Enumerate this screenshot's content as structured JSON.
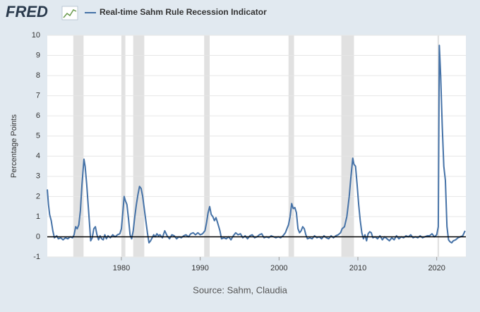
{
  "logo": "FRED",
  "chart_data": {
    "type": "line",
    "y_label": "Percentage Points",
    "source": "Source: Sahm, Claudia",
    "grid": true,
    "recession_color": "#e1e1e1",
    "recessions": [
      [
        1973.9,
        1975.2
      ],
      [
        1980.0,
        1980.5
      ],
      [
        1981.5,
        1982.9
      ],
      [
        1990.5,
        1991.2
      ],
      [
        2001.2,
        2001.9
      ],
      [
        2007.9,
        2009.5
      ],
      [
        2020.1,
        2020.3
      ]
    ],
    "xlim": [
      1970.6,
      2023.7
    ],
    "xticks": [
      1980,
      1990,
      2000,
      2010,
      2020
    ],
    "ylim": [
      -1,
      10
    ],
    "yticks": [
      -1,
      0,
      1,
      2,
      3,
      4,
      5,
      6,
      7,
      8,
      9,
      10
    ],
    "x": [
      1970.6,
      1970.75,
      1970.9,
      1971.1,
      1971.3,
      1971.5,
      1971.8,
      1972.0,
      1972.3,
      1972.6,
      1972.9,
      1973.2,
      1973.5,
      1973.8,
      1974.0,
      1974.2,
      1974.4,
      1974.6,
      1974.8,
      1975.0,
      1975.25,
      1975.4,
      1975.6,
      1975.8,
      1976.0,
      1976.1,
      1976.3,
      1976.5,
      1976.7,
      1976.9,
      1977.1,
      1977.3,
      1977.5,
      1977.7,
      1977.9,
      1978.1,
      1978.3,
      1978.6,
      1978.9,
      1979.2,
      1979.5,
      1979.8,
      1980.0,
      1980.2,
      1980.35,
      1980.5,
      1980.7,
      1980.9,
      1981.1,
      1981.3,
      1981.5,
      1981.7,
      1981.9,
      1982.1,
      1982.3,
      1982.5,
      1982.7,
      1982.9,
      1983.1,
      1983.3,
      1983.5,
      1983.7,
      1983.9,
      1984.1,
      1984.3,
      1984.5,
      1984.7,
      1984.9,
      1985.2,
      1985.5,
      1985.8,
      1986.1,
      1986.4,
      1986.7,
      1987.0,
      1987.3,
      1987.6,
      1987.9,
      1988.2,
      1988.5,
      1988.8,
      1989.1,
      1989.4,
      1989.7,
      1990.0,
      1990.3,
      1990.6,
      1990.8,
      1991.0,
      1991.2,
      1991.4,
      1991.6,
      1991.8,
      1992.0,
      1992.2,
      1992.5,
      1992.7,
      1993.0,
      1993.3,
      1993.6,
      1993.9,
      1994.2,
      1994.5,
      1994.8,
      1995.1,
      1995.4,
      1995.7,
      1996.0,
      1996.3,
      1996.6,
      1996.9,
      1997.2,
      1997.5,
      1997.8,
      1998.1,
      1998.4,
      1998.7,
      1999.0,
      1999.3,
      1999.6,
      1999.9,
      2000.2,
      2000.5,
      2000.8,
      2001.0,
      2001.2,
      2001.4,
      2001.6,
      2001.8,
      2002.0,
      2002.2,
      2002.4,
      2002.6,
      2002.8,
      2003.0,
      2003.2,
      2003.4,
      2003.6,
      2003.9,
      2004.2,
      2004.5,
      2004.8,
      2005.1,
      2005.4,
      2005.7,
      2006.0,
      2006.3,
      2006.6,
      2006.9,
      2007.2,
      2007.5,
      2007.8,
      2008.0,
      2008.3,
      2008.6,
      2008.9,
      2009.1,
      2009.35,
      2009.5,
      2009.7,
      2009.9,
      2010.1,
      2010.3,
      2010.5,
      2010.7,
      2010.9,
      2011.1,
      2011.3,
      2011.5,
      2011.7,
      2011.9,
      2012.2,
      2012.5,
      2012.8,
      2013.1,
      2013.4,
      2013.7,
      2014.0,
      2014.3,
      2014.6,
      2014.9,
      2015.2,
      2015.5,
      2015.8,
      2016.1,
      2016.4,
      2016.7,
      2017.0,
      2017.3,
      2017.6,
      2017.9,
      2018.2,
      2018.5,
      2018.8,
      2019.1,
      2019.4,
      2019.7,
      2020.0,
      2020.2,
      2020.33,
      2020.5,
      2020.7,
      2020.9,
      2021.1,
      2021.3,
      2021.5,
      2021.7,
      2021.9,
      2022.1,
      2022.4,
      2022.7,
      2023.0,
      2023.3,
      2023.6
    ],
    "series": [
      {
        "name": "Real-time Sahm Rule Recession Indicator",
        "color": "#4572a7",
        "values": [
          2.35,
          1.6,
          1.1,
          0.8,
          0.3,
          -0.05,
          0.05,
          -0.1,
          -0.05,
          -0.15,
          -0.05,
          -0.1,
          0.0,
          -0.05,
          0.1,
          0.5,
          0.4,
          0.6,
          1.3,
          2.6,
          3.85,
          3.5,
          2.6,
          1.5,
          0.4,
          -0.2,
          -0.05,
          0.4,
          0.5,
          0.1,
          -0.15,
          0.05,
          -0.1,
          -0.15,
          0.1,
          -0.1,
          0.05,
          -0.05,
          0.1,
          0.0,
          0.1,
          0.15,
          0.4,
          1.3,
          2.0,
          1.8,
          1.6,
          0.9,
          0.1,
          -0.1,
          0.3,
          1.0,
          1.6,
          2.1,
          2.5,
          2.4,
          2.0,
          1.4,
          0.8,
          0.2,
          -0.3,
          -0.2,
          -0.05,
          0.1,
          0.0,
          0.15,
          0.05,
          0.1,
          -0.05,
          0.3,
          0.05,
          -0.1,
          0.1,
          0.05,
          -0.1,
          0.0,
          -0.05,
          0.05,
          0.1,
          0.0,
          0.15,
          0.2,
          0.1,
          0.2,
          0.1,
          0.15,
          0.3,
          0.7,
          1.2,
          1.5,
          1.1,
          1.0,
          0.8,
          0.95,
          0.7,
          0.3,
          -0.1,
          -0.05,
          -0.1,
          0.0,
          -0.15,
          0.05,
          0.2,
          0.1,
          0.15,
          -0.05,
          0.05,
          -0.1,
          0.05,
          0.1,
          -0.05,
          0.0,
          0.1,
          0.15,
          -0.05,
          0.0,
          -0.05,
          0.05,
          0.0,
          -0.05,
          0.0,
          -0.05,
          0.05,
          0.2,
          0.4,
          0.6,
          1.0,
          1.65,
          1.4,
          1.45,
          1.2,
          0.4,
          0.2,
          0.3,
          0.5,
          0.4,
          0.1,
          -0.1,
          -0.05,
          -0.1,
          0.05,
          -0.05,
          0.0,
          -0.1,
          0.05,
          -0.05,
          -0.1,
          0.05,
          -0.05,
          0.05,
          0.1,
          0.2,
          0.4,
          0.5,
          1.0,
          2.0,
          2.9,
          3.9,
          3.6,
          3.5,
          2.6,
          1.6,
          0.8,
          0.2,
          -0.1,
          0.1,
          -0.2,
          0.15,
          0.25,
          0.2,
          -0.05,
          0.0,
          -0.1,
          0.05,
          -0.15,
          0.0,
          -0.1,
          -0.2,
          -0.05,
          -0.15,
          0.05,
          -0.1,
          0.0,
          -0.05,
          0.05,
          0.0,
          0.1,
          -0.05,
          0.0,
          -0.05,
          0.05,
          -0.05,
          0.0,
          0.05,
          0.05,
          0.15,
          0.0,
          0.1,
          0.5,
          9.5,
          8.0,
          5.5,
          3.5,
          2.8,
          0.5,
          -0.15,
          -0.25,
          -0.3,
          -0.2,
          -0.15,
          -0.05,
          0.0,
          0.05,
          0.3
        ]
      }
    ]
  }
}
